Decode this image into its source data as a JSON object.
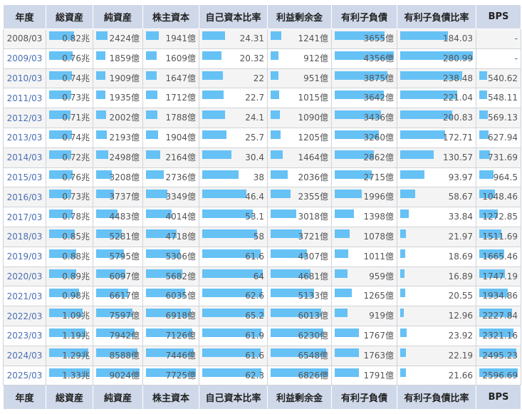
{
  "header": {
    "columns": [
      "年度",
      "総資産",
      "純資産",
      "株主資本",
      "自己資本比率",
      "利益剰余金",
      "有利子負債",
      "有利子負債比率",
      "BPS"
    ]
  },
  "colors": {
    "header_bg": "#cfd8e9",
    "bar": "#66c1f5",
    "link": "#4a6fb5",
    "row_alt": "#f4f4f4"
  },
  "rows": [
    {
      "year": "2008/03",
      "total_assets": "0.82兆",
      "net_assets": "2424億",
      "equity": "1941億",
      "equity_ratio": "24.31",
      "retained": "1241億",
      "debt": "3655億",
      "debt_ratio": "184.03",
      "bps": "-"
    },
    {
      "year": "2009/03",
      "total_assets": "0.76兆",
      "net_assets": "1859億",
      "equity": "1609億",
      "equity_ratio": "20.32",
      "retained": "912億",
      "debt": "4356億",
      "debt_ratio": "280.99",
      "bps": "-"
    },
    {
      "year": "2010/03",
      "total_assets": "0.74兆",
      "net_assets": "1909億",
      "equity": "1647億",
      "equity_ratio": "22",
      "retained": "951億",
      "debt": "3875億",
      "debt_ratio": "238.48",
      "bps": "540.62"
    },
    {
      "year": "2011/03",
      "total_assets": "0.73兆",
      "net_assets": "1935億",
      "equity": "1712億",
      "equity_ratio": "22.7",
      "retained": "1015億",
      "debt": "3642億",
      "debt_ratio": "221.04",
      "bps": "548.11"
    },
    {
      "year": "2012/03",
      "total_assets": "0.71兆",
      "net_assets": "2002億",
      "equity": "1788億",
      "equity_ratio": "24.1",
      "retained": "1090億",
      "debt": "3436億",
      "debt_ratio": "200.83",
      "bps": "569.13"
    },
    {
      "year": "2013/03",
      "total_assets": "0.74兆",
      "net_assets": "2193億",
      "equity": "1904億",
      "equity_ratio": "25.7",
      "retained": "1205億",
      "debt": "3260億",
      "debt_ratio": "172.71",
      "bps": "627.94"
    },
    {
      "year": "2014/03",
      "total_assets": "0.72兆",
      "net_assets": "2498億",
      "equity": "2164億",
      "equity_ratio": "30.4",
      "retained": "1464億",
      "debt": "2862億",
      "debt_ratio": "130.57",
      "bps": "731.69"
    },
    {
      "year": "2015/03",
      "total_assets": "0.76兆",
      "net_assets": "3208億",
      "equity": "2736億",
      "equity_ratio": "38",
      "retained": "2036億",
      "debt": "2715億",
      "debt_ratio": "93.97",
      "bps": "964.5"
    },
    {
      "year": "2016/03",
      "total_assets": "0.73兆",
      "net_assets": "3737億",
      "equity": "3349億",
      "equity_ratio": "46.4",
      "retained": "2355億",
      "debt": "1996億",
      "debt_ratio": "58.67",
      "bps": "1048.46"
    },
    {
      "year": "2017/03",
      "total_assets": "0.78兆",
      "net_assets": "4483億",
      "equity": "4014億",
      "equity_ratio": "53.1",
      "retained": "3018億",
      "debt": "1398億",
      "debt_ratio": "33.84",
      "bps": "1272.85"
    },
    {
      "year": "2018/03",
      "total_assets": "0.85兆",
      "net_assets": "5281億",
      "equity": "4718億",
      "equity_ratio": "58",
      "retained": "3721億",
      "debt": "1078億",
      "debt_ratio": "21.97",
      "bps": "1511.69"
    },
    {
      "year": "2019/03",
      "total_assets": "0.88兆",
      "net_assets": "5795億",
      "equity": "5306億",
      "equity_ratio": "61.6",
      "retained": "4307億",
      "debt": "1011億",
      "debt_ratio": "18.69",
      "bps": "1665.46"
    },
    {
      "year": "2020/03",
      "total_assets": "0.89兆",
      "net_assets": "6097億",
      "equity": "5682億",
      "equity_ratio": "64",
      "retained": "4681億",
      "debt": "959億",
      "debt_ratio": "16.89",
      "bps": "1747.19"
    },
    {
      "year": "2021/03",
      "total_assets": "0.98兆",
      "net_assets": "6617億",
      "equity": "6035億",
      "equity_ratio": "62.6",
      "retained": "5133億",
      "debt": "1265億",
      "debt_ratio": "20.55",
      "bps": "1934.86"
    },
    {
      "year": "2022/03",
      "total_assets": "1.09兆",
      "net_assets": "7597億",
      "equity": "6918億",
      "equity_ratio": "65.2",
      "retained": "6013億",
      "debt": "919億",
      "debt_ratio": "12.96",
      "bps": "2227.84"
    },
    {
      "year": "2023/03",
      "total_assets": "1.19兆",
      "net_assets": "7942億",
      "equity": "7126億",
      "equity_ratio": "61.9",
      "retained": "6230億",
      "debt": "1767億",
      "debt_ratio": "23.92",
      "bps": "2321.16"
    },
    {
      "year": "2024/03",
      "total_assets": "1.29兆",
      "net_assets": "8588億",
      "equity": "7446億",
      "equity_ratio": "61.6",
      "retained": "6548億",
      "debt": "1763億",
      "debt_ratio": "22.19",
      "bps": "2495.23"
    },
    {
      "year": "2025/03",
      "total_assets": "1.33兆",
      "net_assets": "9024億",
      "equity": "7725億",
      "equity_ratio": "62.3",
      "retained": "6826億",
      "debt": "1791億",
      "debt_ratio": "21.66",
      "bps": "2596.69"
    }
  ]
}
